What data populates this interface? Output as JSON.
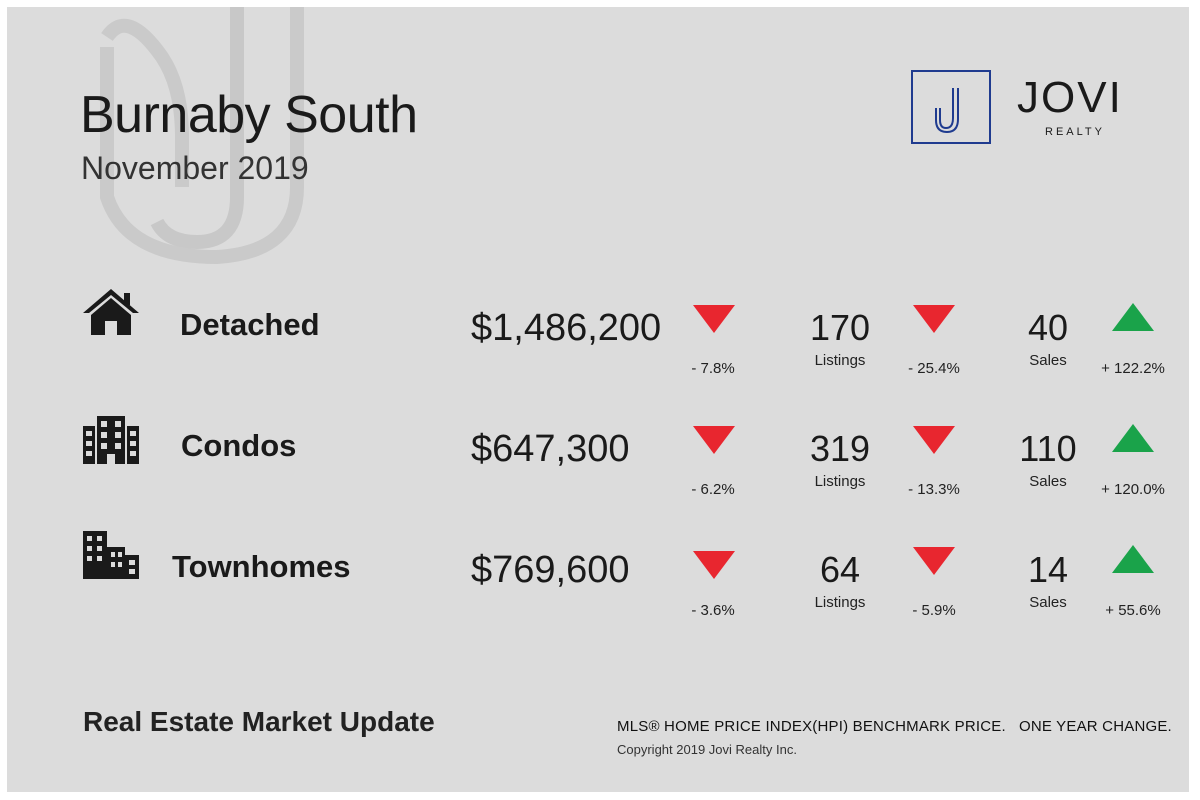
{
  "header": {
    "title": "Burnaby South",
    "subtitle": "November 2019"
  },
  "brand": {
    "logo_letter": "J",
    "name": "JOVI",
    "tagline": "REALTY",
    "color": "#1f3b8f"
  },
  "rows": [
    {
      "label": "Detached",
      "icon": "house-icon",
      "price": "$1,486,200",
      "price_change": "- 7.8%",
      "listings": "170",
      "listings_label": "Listings",
      "listings_change": "- 25.4%",
      "sales": "40",
      "sales_label": "Sales",
      "sales_change": "+ 122.2%"
    },
    {
      "label": "Condos",
      "icon": "apartment-building-icon",
      "price": "$647,300",
      "price_change": "- 6.2%",
      "listings": "319",
      "listings_label": "Listings",
      "listings_change": "- 13.3%",
      "sales": "110",
      "sales_label": "Sales",
      "sales_change": "+ 120.0%"
    },
    {
      "label": "Townhomes",
      "icon": "townhome-buildings-icon",
      "price": "$769,600",
      "price_change": "- 3.6%",
      "listings": "64",
      "listings_label": "Listings",
      "listings_change": "- 5.9%",
      "sales": "14",
      "sales_label": "Sales",
      "sales_change": "+ 55.6%"
    }
  ],
  "colors": {
    "down": "#e8262f",
    "up": "#1aa34a"
  },
  "footer": {
    "left": "Real Estate Market Update",
    "right": "MLS® HOME PRICE INDEX(HPI) BENCHMARK PRICE.   ONE YEAR CHANGE.",
    "copyright": "Copyright 2019 Jovi Realty Inc."
  }
}
